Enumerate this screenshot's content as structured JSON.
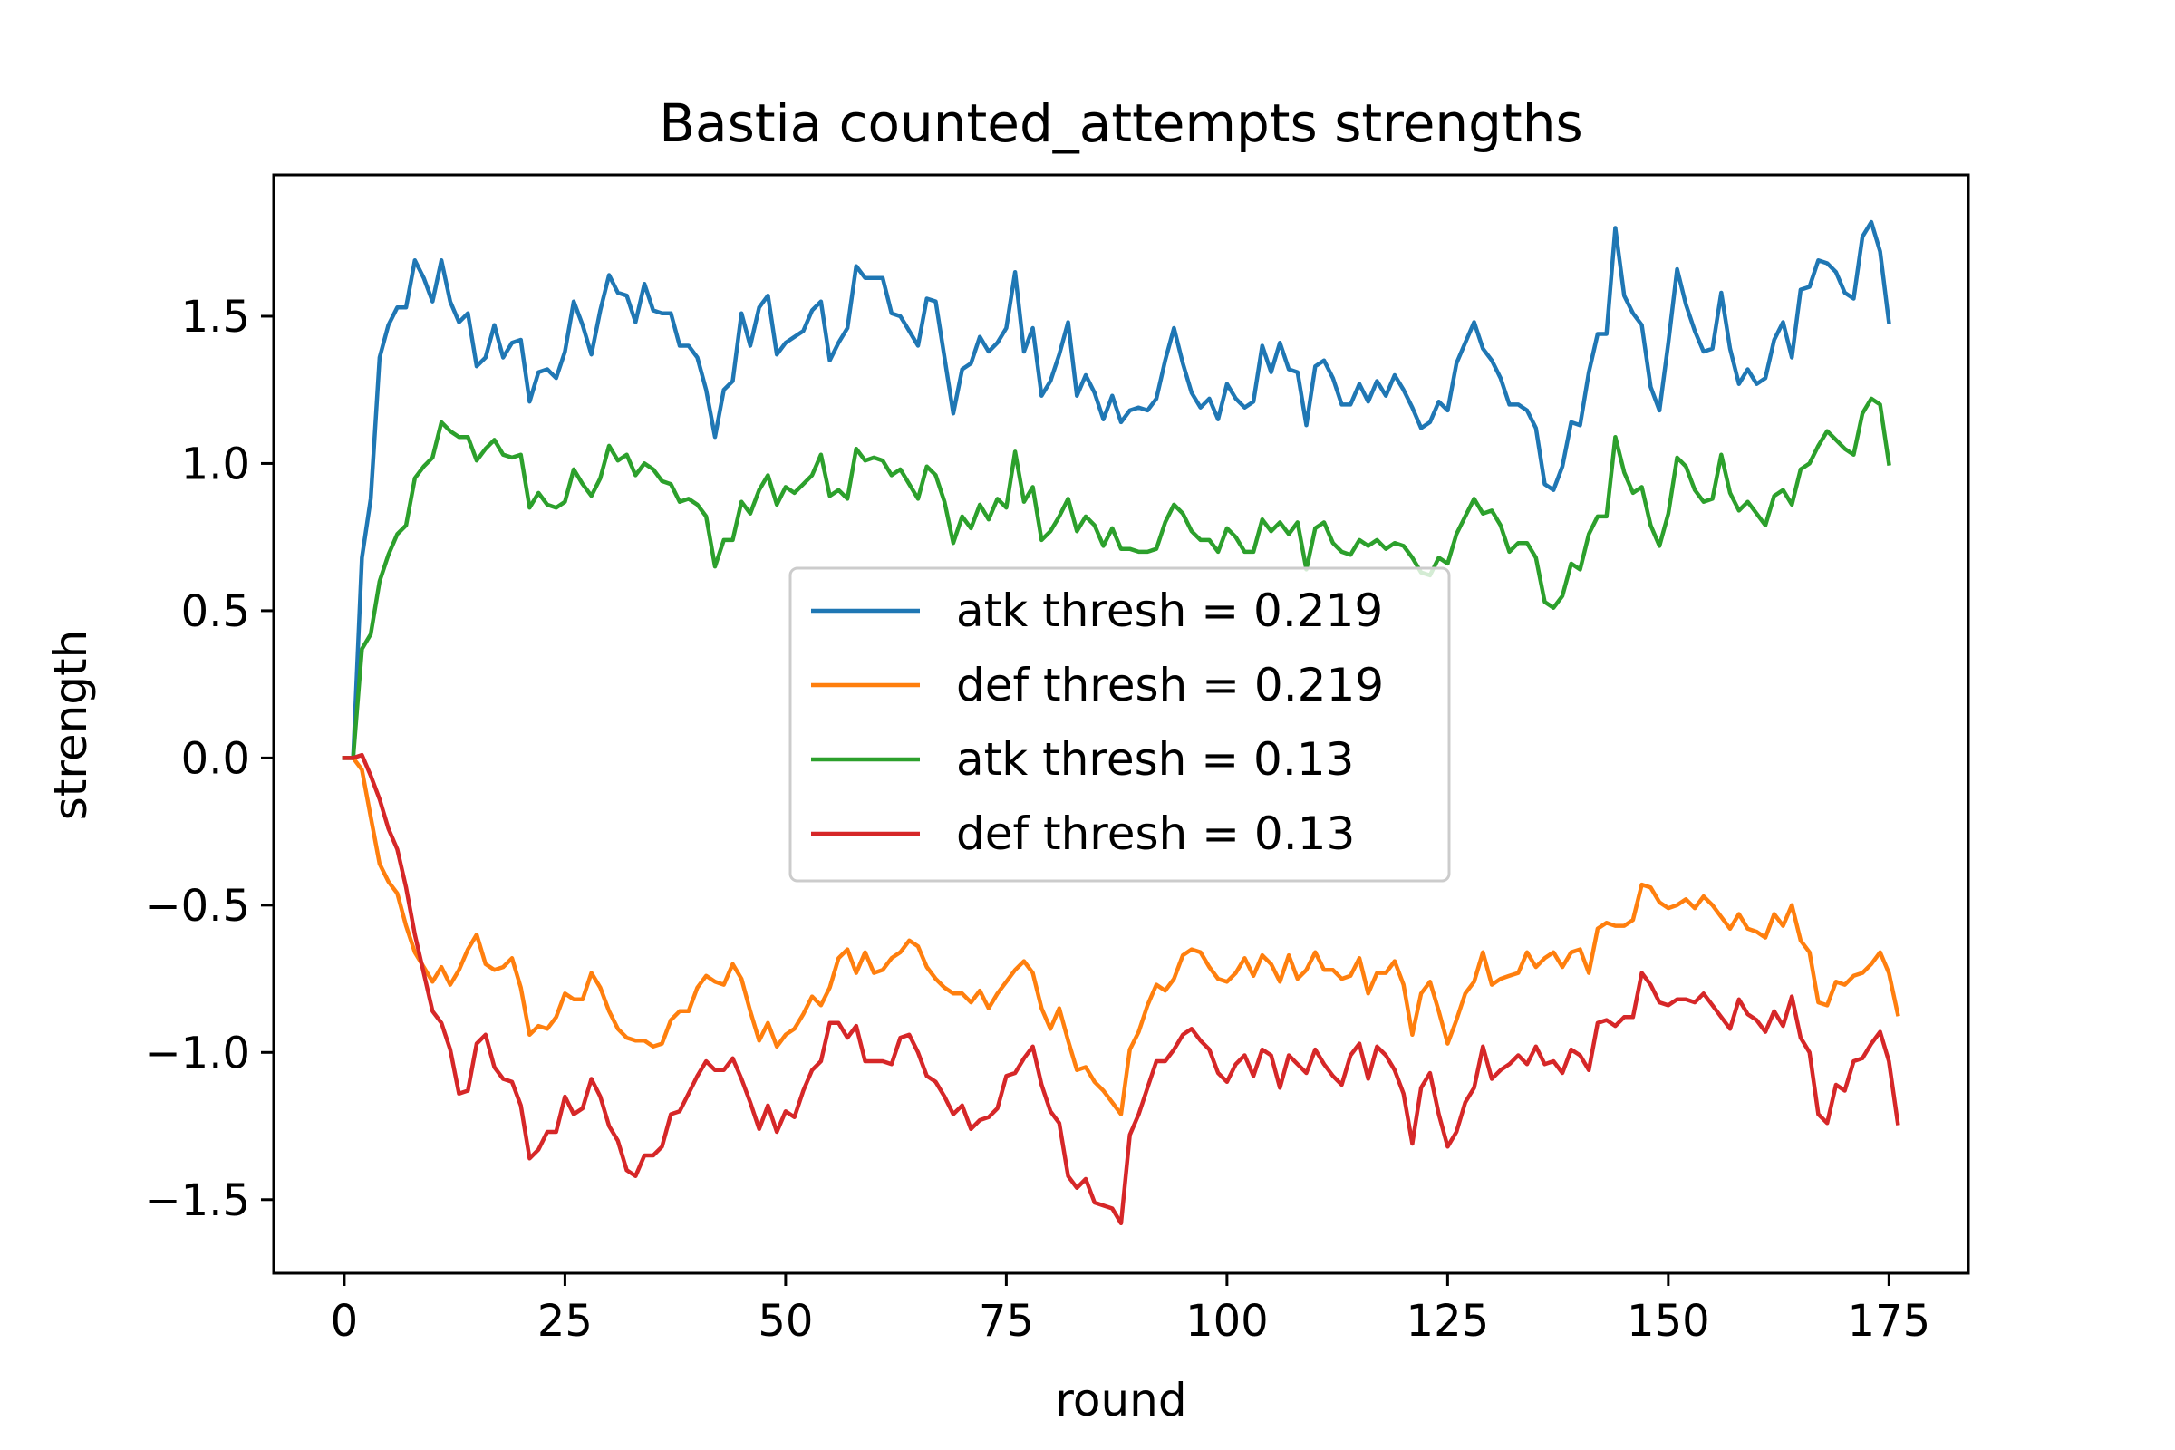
{
  "chart_data": {
    "type": "line",
    "title": "Bastia counted_attempts strengths",
    "xlabel": "round",
    "ylabel": "strength",
    "xlim": [
      -8,
      184
    ],
    "ylim": [
      -1.75,
      1.98
    ],
    "xticks": [
      0,
      25,
      50,
      75,
      100,
      125,
      150,
      175
    ],
    "xtick_labels": [
      "0",
      "25",
      "50",
      "75",
      "100",
      "125",
      "150",
      "175"
    ],
    "yticks": [
      -1.5,
      -1.0,
      -0.5,
      0.0,
      0.5,
      1.0,
      1.5
    ],
    "ytick_labels": [
      "−1.5",
      "−1.0",
      "−0.5",
      "0.0",
      "0.5",
      "1.0",
      "1.5"
    ],
    "grid": false,
    "legend_position": "center",
    "series": [
      {
        "name": "atk thresh = 0.219",
        "color": "#1f77b4",
        "x_start": 0,
        "values": [
          0.0,
          0.0,
          0.68,
          0.88,
          1.36,
          1.47,
          1.53,
          1.53,
          1.69,
          1.63,
          1.55,
          1.69,
          1.55,
          1.48,
          1.51,
          1.33,
          1.36,
          1.47,
          1.36,
          1.41,
          1.42,
          1.21,
          1.31,
          1.32,
          1.29,
          1.38,
          1.55,
          1.47,
          1.37,
          1.52,
          1.64,
          1.58,
          1.57,
          1.48,
          1.61,
          1.52,
          1.51,
          1.51,
          1.4,
          1.4,
          1.36,
          1.25,
          1.09,
          1.25,
          1.28,
          1.51,
          1.4,
          1.53,
          1.57,
          1.37,
          1.41,
          1.43,
          1.45,
          1.52,
          1.55,
          1.35,
          1.41,
          1.46,
          1.67,
          1.63,
          1.63,
          1.63,
          1.51,
          1.5,
          1.45,
          1.4,
          1.56,
          1.55,
          1.36,
          1.17,
          1.32,
          1.34,
          1.43,
          1.38,
          1.41,
          1.46,
          1.65,
          1.38,
          1.46,
          1.23,
          1.28,
          1.37,
          1.48,
          1.23,
          1.3,
          1.24,
          1.15,
          1.23,
          1.14,
          1.18,
          1.19,
          1.18,
          1.22,
          1.35,
          1.46,
          1.34,
          1.24,
          1.19,
          1.22,
          1.15,
          1.27,
          1.22,
          1.19,
          1.21,
          1.4,
          1.31,
          1.41,
          1.32,
          1.31,
          1.13,
          1.33,
          1.35,
          1.29,
          1.2,
          1.2,
          1.27,
          1.21,
          1.28,
          1.23,
          1.3,
          1.25,
          1.19,
          1.12,
          1.14,
          1.21,
          1.18,
          1.34,
          1.41,
          1.48,
          1.39,
          1.35,
          1.29,
          1.2,
          1.2,
          1.18,
          1.12,
          0.93,
          0.91,
          0.99,
          1.14,
          1.13,
          1.31,
          1.44,
          1.44,
          1.8,
          1.57,
          1.51,
          1.47,
          1.26,
          1.18,
          1.41,
          1.66,
          1.54,
          1.45,
          1.38,
          1.39,
          1.58,
          1.39,
          1.27,
          1.32,
          1.27,
          1.29,
          1.42,
          1.48,
          1.36,
          1.59,
          1.6,
          1.69,
          1.68,
          1.65,
          1.58,
          1.56,
          1.77,
          1.82,
          1.72,
          1.48
        ]
      },
      {
        "name": "def thresh = 0.219",
        "color": "#ff7f0e",
        "x_start": 0,
        "values": [
          0.0,
          0.0,
          -0.04,
          -0.2,
          -0.36,
          -0.42,
          -0.46,
          -0.57,
          -0.66,
          -0.71,
          -0.76,
          -0.71,
          -0.77,
          -0.72,
          -0.65,
          -0.6,
          -0.7,
          -0.72,
          -0.71,
          -0.68,
          -0.78,
          -0.94,
          -0.91,
          -0.92,
          -0.88,
          -0.8,
          -0.82,
          -0.82,
          -0.73,
          -0.78,
          -0.86,
          -0.92,
          -0.95,
          -0.96,
          -0.96,
          -0.98,
          -0.97,
          -0.89,
          -0.86,
          -0.86,
          -0.78,
          -0.74,
          -0.76,
          -0.77,
          -0.7,
          -0.75,
          -0.86,
          -0.96,
          -0.9,
          -0.98,
          -0.94,
          -0.92,
          -0.87,
          -0.81,
          -0.84,
          -0.78,
          -0.68,
          -0.65,
          -0.73,
          -0.66,
          -0.73,
          -0.72,
          -0.68,
          -0.66,
          -0.62,
          -0.64,
          -0.71,
          -0.75,
          -0.78,
          -0.8,
          -0.8,
          -0.83,
          -0.79,
          -0.85,
          -0.8,
          -0.76,
          -0.72,
          -0.69,
          -0.73,
          -0.85,
          -0.92,
          -0.85,
          -0.96,
          -1.06,
          -1.05,
          -1.1,
          -1.13,
          -1.17,
          -1.21,
          -0.99,
          -0.93,
          -0.84,
          -0.77,
          -0.79,
          -0.75,
          -0.67,
          -0.65,
          -0.66,
          -0.71,
          -0.75,
          -0.76,
          -0.73,
          -0.68,
          -0.74,
          -0.67,
          -0.7,
          -0.76,
          -0.67,
          -0.75,
          -0.72,
          -0.66,
          -0.72,
          -0.72,
          -0.75,
          -0.74,
          -0.68,
          -0.8,
          -0.73,
          -0.73,
          -0.69,
          -0.77,
          -0.94,
          -0.8,
          -0.76,
          -0.86,
          -0.97,
          -0.89,
          -0.8,
          -0.76,
          -0.66,
          -0.77,
          -0.75,
          -0.74,
          -0.73,
          -0.66,
          -0.71,
          -0.68,
          -0.66,
          -0.71,
          -0.66,
          -0.65,
          -0.73,
          -0.58,
          -0.56,
          -0.57,
          -0.57,
          -0.55,
          -0.43,
          -0.44,
          -0.49,
          -0.51,
          -0.5,
          -0.48,
          -0.51,
          -0.47,
          -0.5,
          -0.54,
          -0.58,
          -0.53,
          -0.58,
          -0.59,
          -0.61,
          -0.53,
          -0.57,
          -0.5,
          -0.62,
          -0.66,
          -0.83,
          -0.84,
          -0.76,
          -0.77,
          -0.74,
          -0.73,
          -0.7,
          -0.66,
          -0.73,
          -0.87
        ]
      },
      {
        "name": "atk thresh = 0.13",
        "color": "#2ca02c",
        "x_start": 0,
        "values": [
          0.0,
          0.0,
          0.37,
          0.42,
          0.6,
          0.69,
          0.76,
          0.79,
          0.95,
          0.99,
          1.02,
          1.14,
          1.11,
          1.09,
          1.09,
          1.01,
          1.05,
          1.08,
          1.03,
          1.02,
          1.03,
          0.85,
          0.9,
          0.86,
          0.85,
          0.87,
          0.98,
          0.93,
          0.89,
          0.95,
          1.06,
          1.01,
          1.03,
          0.96,
          1.0,
          0.98,
          0.94,
          0.93,
          0.87,
          0.88,
          0.86,
          0.82,
          0.65,
          0.74,
          0.74,
          0.87,
          0.83,
          0.91,
          0.96,
          0.86,
          0.92,
          0.9,
          0.93,
          0.96,
          1.03,
          0.89,
          0.91,
          0.88,
          1.05,
          1.01,
          1.02,
          1.01,
          0.96,
          0.98,
          0.93,
          0.88,
          0.99,
          0.96,
          0.87,
          0.73,
          0.82,
          0.78,
          0.86,
          0.81,
          0.88,
          0.85,
          1.04,
          0.87,
          0.92,
          0.74,
          0.77,
          0.82,
          0.88,
          0.77,
          0.82,
          0.79,
          0.72,
          0.78,
          0.71,
          0.71,
          0.7,
          0.7,
          0.71,
          0.8,
          0.86,
          0.83,
          0.77,
          0.74,
          0.74,
          0.7,
          0.78,
          0.75,
          0.7,
          0.7,
          0.81,
          0.77,
          0.8,
          0.76,
          0.8,
          0.64,
          0.78,
          0.8,
          0.73,
          0.7,
          0.69,
          0.74,
          0.72,
          0.74,
          0.71,
          0.73,
          0.72,
          0.68,
          0.63,
          0.62,
          0.68,
          0.66,
          0.76,
          0.82,
          0.88,
          0.83,
          0.84,
          0.79,
          0.7,
          0.73,
          0.73,
          0.68,
          0.53,
          0.51,
          0.55,
          0.66,
          0.64,
          0.76,
          0.82,
          0.82,
          1.09,
          0.97,
          0.9,
          0.92,
          0.79,
          0.72,
          0.83,
          1.02,
          0.99,
          0.91,
          0.87,
          0.88,
          1.03,
          0.9,
          0.84,
          0.87,
          0.83,
          0.79,
          0.89,
          0.91,
          0.86,
          0.98,
          1.0,
          1.06,
          1.11,
          1.08,
          1.05,
          1.03,
          1.17,
          1.22,
          1.2,
          1.0
        ]
      },
      {
        "name": "def thresh = 0.13",
        "color": "#d62728",
        "x_start": 0,
        "values": [
          0.0,
          0.0,
          0.01,
          -0.06,
          -0.14,
          -0.24,
          -0.31,
          -0.44,
          -0.6,
          -0.73,
          -0.86,
          -0.9,
          -0.99,
          -1.14,
          -1.13,
          -0.97,
          -0.94,
          -1.05,
          -1.09,
          -1.1,
          -1.18,
          -1.36,
          -1.33,
          -1.27,
          -1.27,
          -1.15,
          -1.21,
          -1.19,
          -1.09,
          -1.15,
          -1.25,
          -1.3,
          -1.4,
          -1.42,
          -1.35,
          -1.35,
          -1.32,
          -1.21,
          -1.2,
          -1.14,
          -1.08,
          -1.03,
          -1.06,
          -1.06,
          -1.02,
          -1.09,
          -1.17,
          -1.26,
          -1.18,
          -1.27,
          -1.2,
          -1.22,
          -1.13,
          -1.06,
          -1.03,
          -0.9,
          -0.9,
          -0.95,
          -0.91,
          -1.03,
          -1.03,
          -1.03,
          -1.04,
          -0.95,
          -0.94,
          -1.0,
          -1.08,
          -1.1,
          -1.15,
          -1.21,
          -1.18,
          -1.26,
          -1.23,
          -1.22,
          -1.19,
          -1.08,
          -1.07,
          -1.02,
          -0.98,
          -1.11,
          -1.2,
          -1.24,
          -1.42,
          -1.46,
          -1.43,
          -1.51,
          -1.52,
          -1.53,
          -1.58,
          -1.28,
          -1.21,
          -1.12,
          -1.03,
          -1.03,
          -0.99,
          -0.94,
          -0.92,
          -0.96,
          -0.99,
          -1.07,
          -1.1,
          -1.04,
          -1.01,
          -1.08,
          -0.99,
          -1.01,
          -1.12,
          -1.01,
          -1.04,
          -1.07,
          -0.99,
          -1.04,
          -1.08,
          -1.11,
          -1.01,
          -0.97,
          -1.09,
          -0.98,
          -1.01,
          -1.06,
          -1.14,
          -1.31,
          -1.12,
          -1.07,
          -1.21,
          -1.32,
          -1.27,
          -1.17,
          -1.12,
          -0.98,
          -1.09,
          -1.06,
          -1.04,
          -1.01,
          -1.04,
          -0.98,
          -1.04,
          -1.03,
          -1.07,
          -0.99,
          -1.01,
          -1.06,
          -0.9,
          -0.89,
          -0.91,
          -0.88,
          -0.88,
          -0.73,
          -0.77,
          -0.83,
          -0.84,
          -0.82,
          -0.82,
          -0.83,
          -0.8,
          -0.84,
          -0.88,
          -0.92,
          -0.82,
          -0.87,
          -0.89,
          -0.93,
          -0.86,
          -0.91,
          -0.81,
          -0.95,
          -1.0,
          -1.21,
          -1.24,
          -1.11,
          -1.13,
          -1.03,
          -1.02,
          -0.97,
          -0.93,
          -1.03,
          -1.24
        ]
      }
    ]
  }
}
